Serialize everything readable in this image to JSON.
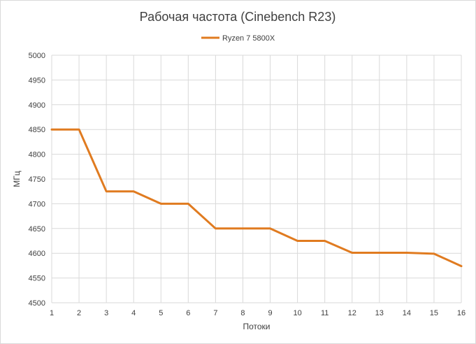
{
  "chart_data": {
    "type": "line",
    "title": "Рабочая частота (Cinebench R23)",
    "xlabel": "Потоки",
    "ylabel": "МГц",
    "x": [
      "1",
      "2",
      "3",
      "4",
      "5",
      "6",
      "7",
      "8",
      "9",
      "10",
      "11",
      "12",
      "13",
      "14",
      "15",
      "16"
    ],
    "series": [
      {
        "name": "Ryzen 7 5800X",
        "color": "#e07b20",
        "values": [
          4850,
          4850,
          4725,
          4725,
          4700,
          4700,
          4650,
          4650,
          4650,
          4625,
          4625,
          4601,
          4601,
          4601,
          4599,
          4574
        ]
      }
    ],
    "ylim": [
      4500,
      5000
    ],
    "yticks": [
      "4500",
      "4550",
      "4600",
      "4650",
      "4700",
      "4750",
      "4800",
      "4850",
      "4900",
      "4950",
      "5000"
    ],
    "grid": true,
    "legend": "top-center"
  }
}
